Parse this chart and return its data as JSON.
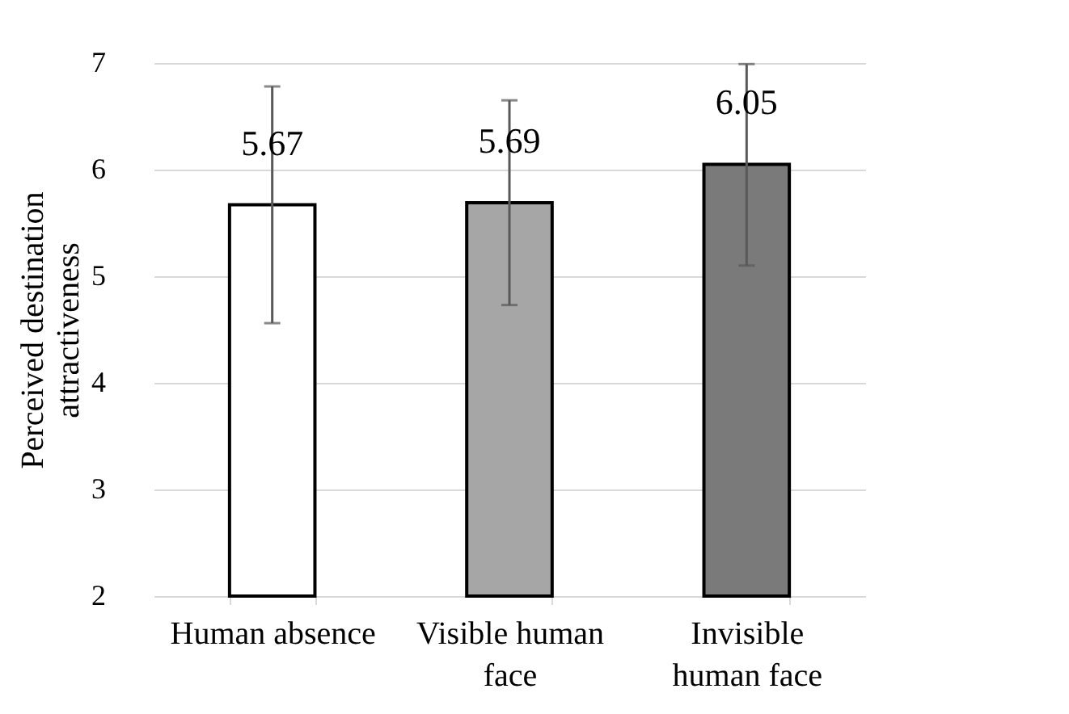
{
  "chart_data": {
    "type": "bar",
    "ylabel": "Perceived destination attractiveness",
    "categories": [
      "Human absence",
      "Visible human face",
      "Invisible human face"
    ],
    "values": [
      5.67,
      5.69,
      6.05
    ],
    "colors": [
      "#ffffff",
      "#a6a6a6",
      "#7a7a7a"
    ],
    "errors": [
      [
        4.56,
        6.78
      ],
      [
        4.73,
        6.65
      ],
      [
        5.1,
        6.99
      ]
    ],
    "data_labels": true,
    "ylim": [
      2,
      7
    ],
    "yticks": [
      2,
      3,
      4,
      5,
      6,
      7
    ],
    "grid": "y"
  }
}
